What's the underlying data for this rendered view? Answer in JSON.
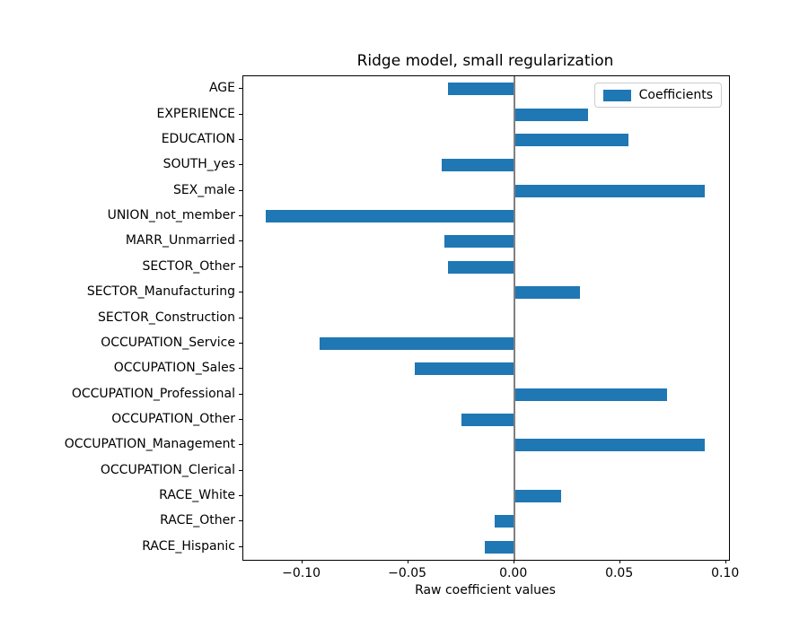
{
  "chart_data": {
    "type": "bar",
    "orientation": "horizontal",
    "title": "Ridge model, small regularization",
    "xlabel": "Raw coefficient values",
    "ylabel": "",
    "legend": [
      "Coefficients"
    ],
    "legend_position": "upper right",
    "grid": false,
    "categories": [
      "AGE",
      "EXPERIENCE",
      "EDUCATION",
      "SOUTH_yes",
      "SEX_male",
      "UNION_not_member",
      "MARR_Unmarried",
      "SECTOR_Other",
      "SECTOR_Manufacturing",
      "SECTOR_Construction",
      "OCCUPATION_Service",
      "OCCUPATION_Sales",
      "OCCUPATION_Professional",
      "OCCUPATION_Other",
      "OCCUPATION_Management",
      "OCCUPATION_Clerical",
      "RACE_White",
      "RACE_Other",
      "RACE_Hispanic"
    ],
    "values": [
      -0.031,
      0.035,
      0.054,
      -0.034,
      0.09,
      -0.117,
      -0.033,
      -0.031,
      0.031,
      0.0,
      -0.092,
      -0.047,
      0.072,
      -0.025,
      0.09,
      0.0,
      0.022,
      -0.009,
      -0.014
    ],
    "xlim": [
      -0.1278,
      0.1014
    ],
    "x_ticks": [
      {
        "value": -0.1,
        "label": "−0.10"
      },
      {
        "value": -0.05,
        "label": "−0.05"
      },
      {
        "value": 0.0,
        "label": "0.00"
      },
      {
        "value": 0.05,
        "label": "0.05"
      },
      {
        "value": 0.1,
        "label": "0.10"
      }
    ],
    "colors": {
      "bar": "#1f77b4",
      "zero_line": "#808080",
      "legend_border": "#cccccc",
      "text": "#000000"
    }
  }
}
